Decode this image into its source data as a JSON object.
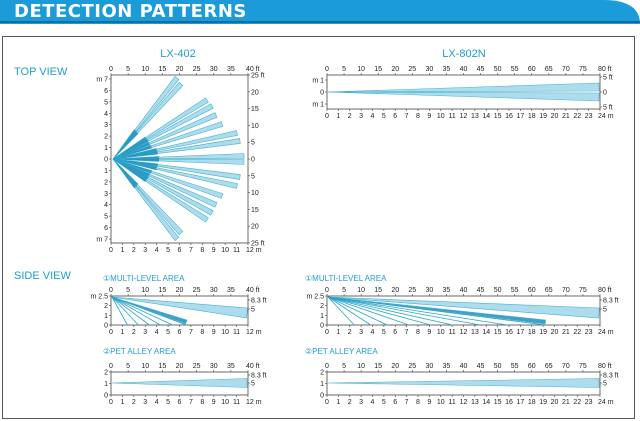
{
  "header": {
    "title": "DETECTION PATTERNS"
  },
  "labels": {
    "top_view": "TOP VIEW",
    "side_view": "SIDE VIEW",
    "model_left": "LX-402",
    "model_right": "LX-802N",
    "multi_level": "①MULTI-LEVEL AREA",
    "pet_alley": "②PET ALLEY AREA"
  },
  "axes": {
    "ft40": [
      "0",
      "5",
      "10",
      "15",
      "20",
      "25",
      "30",
      "35",
      "40 ft"
    ],
    "m12": [
      "0",
      "1",
      "2",
      "3",
      "4",
      "5",
      "6",
      "7",
      "8",
      "9",
      "10",
      "11",
      "12 m"
    ],
    "ft80": [
      "0",
      "5",
      "10",
      "15",
      "20",
      "25",
      "30",
      "35",
      "40",
      "45",
      "50",
      "55",
      "60",
      "65",
      "70",
      "75",
      "80 ft"
    ],
    "m24": [
      "0",
      "1",
      "2",
      "3",
      "4",
      "5",
      "6",
      "7",
      "8",
      "9",
      "10",
      "11",
      "12",
      "13",
      "14",
      "15",
      "16",
      "17",
      "18",
      "19",
      "20",
      "21",
      "22",
      "23",
      "24 m"
    ],
    "top_left_m": [
      "m 7",
      "6",
      "5",
      "4",
      "3",
      "2",
      "1",
      "0",
      "1",
      "2",
      "3",
      "4",
      "5",
      "6",
      "m 7"
    ],
    "top_left_ft": [
      "25 ft",
      "20",
      "15",
      "10",
      "5",
      "0",
      "5",
      "10",
      "15",
      "20",
      "25 ft"
    ],
    "top_right_m": [
      "m 1",
      "0",
      "m 1"
    ],
    "top_right_ft": [
      "5 ft",
      "0",
      "5 ft"
    ],
    "side_m": [
      "m 2.5",
      "2",
      "1",
      "0"
    ],
    "side_ft": [
      "8.3 ft",
      "5"
    ],
    "pet_m": [
      "2",
      "1",
      "0"
    ],
    "pet_ft": [
      "8.3 ft",
      "5"
    ]
  },
  "colors": {
    "banner": "#1b9bd7",
    "accent": "#2aa4c8",
    "beam": "#9fd8ea",
    "beam_dark": "#1f8fbf"
  }
}
